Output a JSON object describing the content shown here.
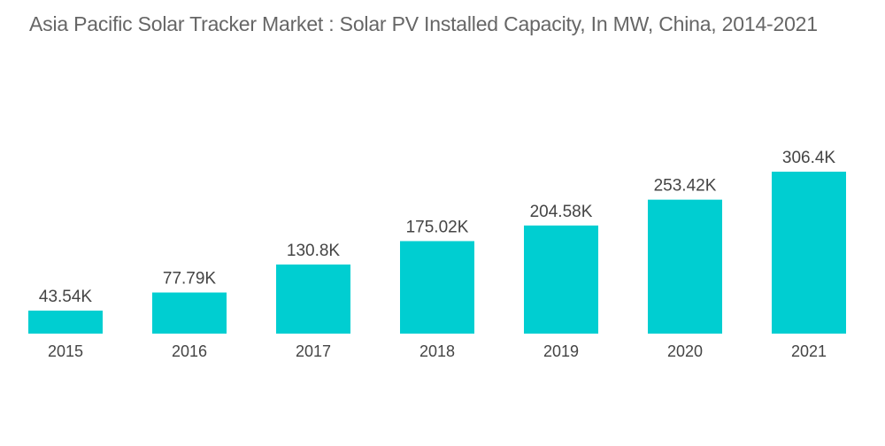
{
  "chart_data": {
    "type": "bar",
    "title": "Asia Pacific Solar Tracker Market : Solar PV Installed Capacity, In MW, China, 2014-2021",
    "categories": [
      "2015",
      "2016",
      "2017",
      "2018",
      "2019",
      "2020",
      "2021"
    ],
    "values": [
      43540,
      77790,
      130800,
      175020,
      204580,
      253420,
      306400
    ],
    "value_labels": [
      "43.54K",
      "77.79K",
      "130.8K",
      "175.02K",
      "204.58K",
      "253.42K",
      "306.4K"
    ],
    "xlabel": "",
    "ylabel": "",
    "ylim": [
      0,
      306400
    ],
    "grid": false,
    "legend": "none",
    "bar_color": "#00ced1"
  }
}
